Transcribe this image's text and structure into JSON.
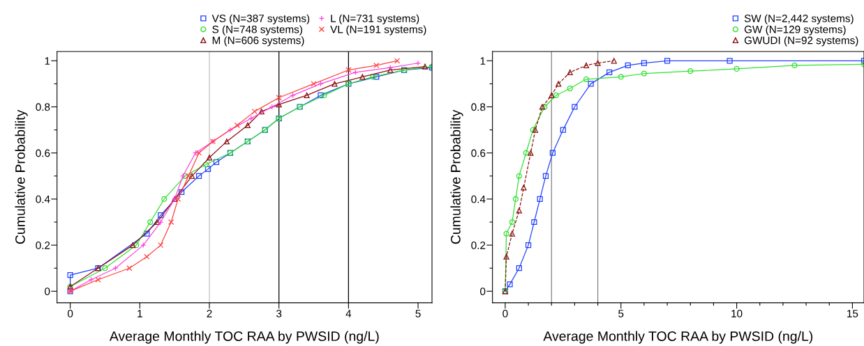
{
  "chart_data": [
    {
      "type": "line",
      "xlabel": "Average Monthly TOC RAA by PWSID (ng/L)",
      "ylabel": "Cumulative Probability",
      "legend": "top right",
      "grid": false,
      "line_style": "solid",
      "xlim": [
        -0.19,
        5.2
      ],
      "xticks": [
        0,
        1,
        2,
        3,
        4,
        5
      ],
      "ylim": [
        -0.05,
        1.04
      ],
      "yticks": [
        {
          "value": 0,
          "label": "0"
        },
        {
          "value": 0.1,
          "label": null
        },
        0.2,
        {
          "value": 0.3,
          "label": null
        },
        0.4,
        {
          "value": 0.5,
          "label": null
        },
        0.6,
        {
          "value": 0.7,
          "label": null
        },
        0.8,
        {
          "value": 0.9,
          "label": null
        },
        {
          "value": 1,
          "label": "1"
        }
      ],
      "ref_lines": [
        {
          "axis": "x",
          "value": 2,
          "color": "#c0c0c0"
        },
        {
          "axis": "x",
          "value": 3,
          "color": "#000000"
        },
        {
          "axis": "x",
          "value": 4,
          "color": "#000000"
        }
      ],
      "series": [
        {
          "name": "VS (N=387 systems)",
          "color": "#2040ff",
          "marker": "square",
          "x": [
            0,
            0,
            0.4,
            1.1,
            1.3,
            1.6,
            1.85,
            1.98,
            2.1,
            2.3,
            2.55,
            2.8,
            3.0,
            3.3,
            3.6,
            4.0,
            4.4,
            4.8,
            5.2
          ],
          "values": [
            0,
            0.07,
            0.1,
            0.25,
            0.33,
            0.43,
            0.5,
            0.53,
            0.56,
            0.6,
            0.65,
            0.7,
            0.75,
            0.8,
            0.85,
            0.9,
            0.93,
            0.96,
            0.97
          ]
        },
        {
          "name": "S (N=748 systems)",
          "color": "#30e030",
          "marker": "circle",
          "x": [
            0,
            0.5,
            0.95,
            1.15,
            1.35,
            1.65,
            1.95,
            2.3,
            2.55,
            2.8,
            3.0,
            3.3,
            3.65,
            4.0,
            4.35,
            4.8,
            5.2
          ],
          "values": [
            0.02,
            0.1,
            0.2,
            0.3,
            0.4,
            0.5,
            0.55,
            0.6,
            0.65,
            0.7,
            0.75,
            0.8,
            0.85,
            0.9,
            0.93,
            0.96,
            0.975
          ]
        },
        {
          "name": "M (N=606 systems)",
          "color": "#8b1010",
          "marker": "triangle",
          "x": [
            0,
            0.4,
            0.9,
            1.25,
            1.5,
            1.75,
            2.0,
            2.25,
            2.55,
            2.75,
            3.0,
            3.4,
            3.8,
            4.2,
            4.6,
            5.1
          ],
          "values": [
            0.02,
            0.1,
            0.2,
            0.3,
            0.4,
            0.5,
            0.58,
            0.65,
            0.72,
            0.78,
            0.81,
            0.85,
            0.9,
            0.93,
            0.96,
            0.975
          ]
        },
        {
          "name": "L (N=731 systems)",
          "color": "#ff40e0",
          "marker": "cross",
          "x": [
            0,
            0.3,
            0.65,
            1.05,
            1.3,
            1.5,
            1.62,
            1.8,
            2.05,
            2.3,
            2.6,
            2.9,
            3.2,
            3.6,
            4.1,
            4.6,
            5.0
          ],
          "values": [
            0,
            0.05,
            0.1,
            0.2,
            0.3,
            0.4,
            0.5,
            0.6,
            0.65,
            0.7,
            0.75,
            0.8,
            0.85,
            0.9,
            0.95,
            0.97,
            0.99
          ]
        },
        {
          "name": "VL (N=191 systems)",
          "color": "#ff4040",
          "marker": "x",
          "x": [
            0,
            0.4,
            0.85,
            1.1,
            1.3,
            1.45,
            1.55,
            1.7,
            1.85,
            2.05,
            2.4,
            2.65,
            3.0,
            3.5,
            4.0,
            4.4,
            4.7
          ],
          "values": [
            0,
            0.05,
            0.1,
            0.15,
            0.2,
            0.3,
            0.4,
            0.5,
            0.6,
            0.65,
            0.72,
            0.78,
            0.84,
            0.9,
            0.96,
            0.98,
            1.0
          ]
        }
      ]
    },
    {
      "type": "line",
      "xlabel": "Average Monthly TOC RAA by PWSID (ng/L)",
      "ylabel": "Cumulative Probability",
      "legend": "top right",
      "grid": false,
      "line_style": "solid",
      "xlim": [
        -0.55,
        15.5
      ],
      "xticks": [
        0,
        {
          "value": 1,
          "label": null
        },
        {
          "value": 2,
          "label": null
        },
        {
          "value": 3,
          "label": null
        },
        {
          "value": 4,
          "label": null
        },
        5,
        {
          "value": 6,
          "label": null
        },
        {
          "value": 7,
          "label": null
        },
        {
          "value": 8,
          "label": null
        },
        {
          "value": 9,
          "label": null
        },
        10,
        {
          "value": 11,
          "label": null
        },
        {
          "value": 12,
          "label": null
        },
        {
          "value": 13,
          "label": null
        },
        {
          "value": 14,
          "label": null
        },
        15
      ],
      "ylim": [
        -0.05,
        1.04
      ],
      "yticks": [
        {
          "value": 0,
          "label": "0"
        },
        {
          "value": 0.1,
          "label": null
        },
        0.2,
        {
          "value": 0.3,
          "label": null
        },
        0.4,
        {
          "value": 0.5,
          "label": null
        },
        0.6,
        {
          "value": 0.7,
          "label": null
        },
        0.8,
        {
          "value": 0.9,
          "label": null
        },
        {
          "value": 1,
          "label": "1"
        }
      ],
      "ref_lines": [
        {
          "axis": "x",
          "value": 2,
          "color": "#808080"
        },
        {
          "axis": "x",
          "value": 4,
          "color": "#808080"
        }
      ],
      "series": [
        {
          "name": "SW (N=2,442 systems)",
          "color": "#2040ff",
          "marker": "square",
          "x": [
            0,
            0.2,
            0.6,
            1.0,
            1.25,
            1.5,
            1.75,
            2.05,
            2.5,
            3.0,
            3.7,
            4.5,
            5.3,
            6.0,
            7.0,
            9.7,
            15.5
          ],
          "values": [
            0,
            0.03,
            0.1,
            0.2,
            0.3,
            0.4,
            0.5,
            0.6,
            0.7,
            0.8,
            0.9,
            0.95,
            0.98,
            0.99,
            1.0,
            1.0,
            1.0
          ]
        },
        {
          "name": "GW (N=129 systems)",
          "color": "#30e030",
          "marker": "circle",
          "x": [
            0,
            0.05,
            0.3,
            0.45,
            0.6,
            0.9,
            1.2,
            1.7,
            2.2,
            2.8,
            3.5,
            5.0,
            6.0,
            8.0,
            10.0,
            12.5,
            15.5
          ],
          "values": [
            0,
            0.25,
            0.3,
            0.4,
            0.5,
            0.6,
            0.7,
            0.8,
            0.85,
            0.88,
            0.92,
            0.93,
            0.945,
            0.955,
            0.965,
            0.98,
            0.985
          ]
        },
        {
          "name": "GWUDI (N=92 systems)",
          "color": "#8b1010",
          "marker": "triangle",
          "x": [
            0,
            0.05,
            0.3,
            0.6,
            0.8,
            1.1,
            1.3,
            1.6,
            2.0,
            2.3,
            2.8,
            3.5,
            4.0,
            4.7
          ],
          "values": [
            0,
            0.15,
            0.25,
            0.35,
            0.45,
            0.6,
            0.7,
            0.8,
            0.85,
            0.9,
            0.95,
            0.98,
            0.99,
            1.0
          ],
          "line_style": "dashed"
        }
      ]
    }
  ]
}
